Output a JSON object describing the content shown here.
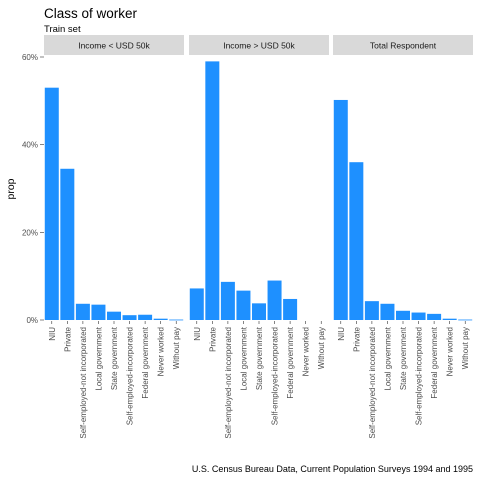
{
  "chart_data": {
    "type": "bar",
    "title": "Class of worker",
    "subtitle": "Train set",
    "ylabel": "prop",
    "xlabel": "",
    "caption": "U.S. Census Bureau Data, Current Population Surveys 1994 and 1995",
    "ylim": [
      0,
      0.6
    ],
    "yticks": [
      0,
      0.2,
      0.4,
      0.6
    ],
    "ytick_labels": [
      "0%",
      "20%",
      "40%",
      "60%"
    ],
    "grid": false,
    "bar_color": "#1e90ff",
    "strip_color": "#d9d9d9",
    "categories": [
      "NIU",
      "Private",
      "Self-employed-not incorporated",
      "Local government",
      "State government",
      "Self-employed-incorporated",
      "Federal government",
      "Never worked",
      "Without pay"
    ],
    "panels": [
      {
        "name": "Income < USD 50k",
        "values": [
          0.53,
          0.345,
          0.037,
          0.035,
          0.019,
          0.011,
          0.012,
          0.003,
          0.001
        ]
      },
      {
        "name": "Income > USD 50k",
        "values": [
          0.072,
          0.59,
          0.087,
          0.067,
          0.038,
          0.09,
          0.048,
          0.0,
          0.0
        ]
      },
      {
        "name": "Total Respondent",
        "values": [
          0.502,
          0.36,
          0.043,
          0.037,
          0.021,
          0.017,
          0.014,
          0.003,
          0.001
        ]
      }
    ]
  }
}
